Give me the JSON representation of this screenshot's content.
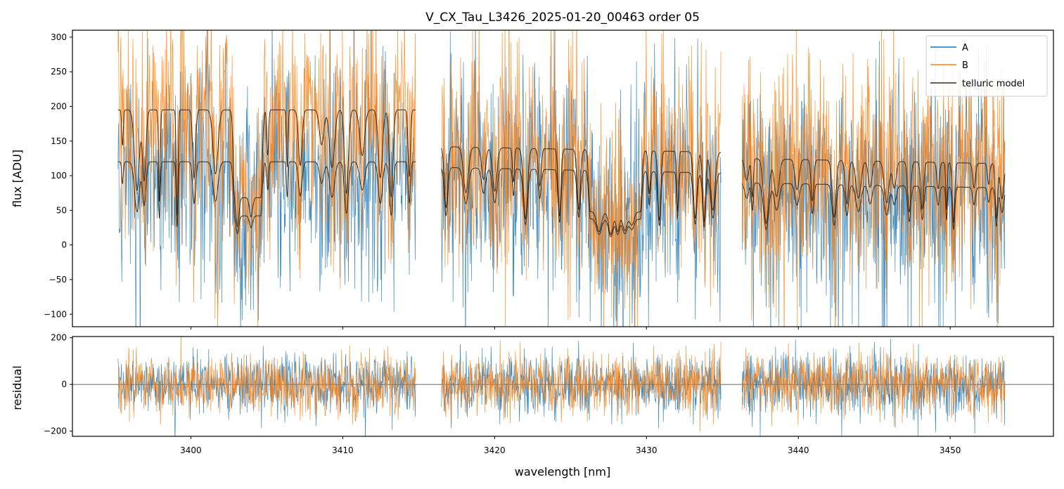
{
  "colors": {
    "A": "#1f77b4",
    "B": "#ff7f0e",
    "telluric": "#3a2a1c",
    "zero_line": "#555555"
  },
  "chart_data": [
    {
      "type": "line",
      "panel": "flux",
      "title": "V_CX_Tau_L3426_2025-01-20_00463  order 05",
      "xlabel": "",
      "ylabel": "flux [ADU]",
      "xlim": [
        3392.2,
        3456.8
      ],
      "ylim": [
        -118,
        310
      ],
      "x_ticks": [
        3400,
        3410,
        3420,
        3430,
        3440,
        3450
      ],
      "y_ticks": [
        -100,
        -50,
        0,
        50,
        100,
        150,
        200,
        250,
        300
      ],
      "y_tick_labels": [
        "−100",
        "−50",
        "0",
        "50",
        "100",
        "150",
        "200",
        "250",
        "300"
      ],
      "legend": {
        "position": "top-right",
        "entries": [
          "A",
          "B",
          "telluric model"
        ]
      },
      "segments": [
        {
          "x_range": [
            3395.2,
            3414.8
          ],
          "A_level": 120,
          "B_level": 195
        },
        {
          "x_range": [
            3416.5,
            3434.9
          ],
          "A_level": 112,
          "B_level": 142
        },
        {
          "x_range": [
            3436.3,
            3453.6
          ],
          "A_level": 90,
          "B_level": 125
        }
      ],
      "series": [
        {
          "name": "A",
          "style": "noisy flux trace, sigma ~80 ADU"
        },
        {
          "name": "B",
          "style": "noisy flux trace, sigma ~80 ADU"
        },
        {
          "name": "telluric model",
          "style": "two smooth model curves with deep absorption lines"
        }
      ]
    },
    {
      "type": "line",
      "panel": "residual",
      "xlabel": "wavelength [nm]",
      "ylabel": "residual",
      "xlim": [
        3392.2,
        3456.8
      ],
      "ylim": [
        -222,
        205
      ],
      "x_ticks": [
        3400,
        3410,
        3420,
        3430,
        3440,
        3450
      ],
      "x_tick_labels": [
        "3400",
        "3410",
        "3420",
        "3430",
        "3440",
        "3450"
      ],
      "y_ticks": [
        -200,
        0,
        200
      ],
      "y_tick_labels": [
        "−200",
        "0",
        "200"
      ],
      "zero_line": 0,
      "series": [
        {
          "name": "A",
          "style": "residual noise, sigma ~65"
        },
        {
          "name": "B",
          "style": "residual noise, sigma ~65"
        }
      ]
    }
  ]
}
